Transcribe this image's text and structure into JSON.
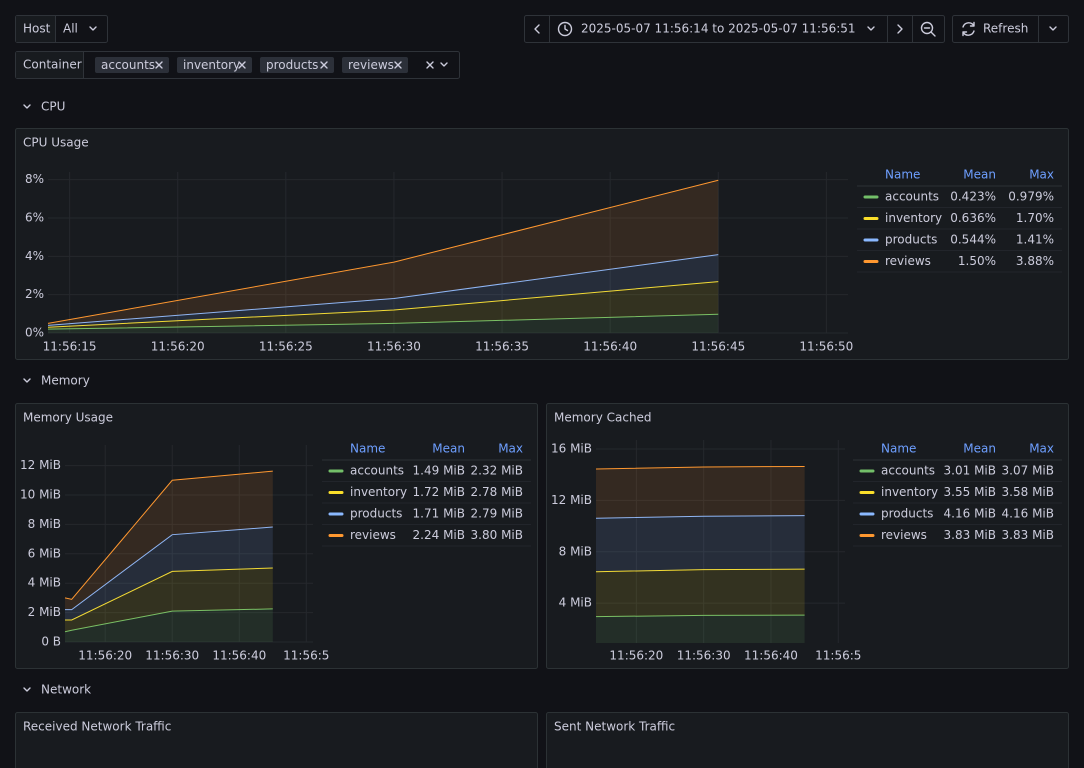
{
  "toolbar": {
    "host_label": "Host",
    "host_value": "All",
    "container_label": "Container",
    "containers": [
      "accounts",
      "inventory",
      "products",
      "reviews"
    ],
    "time_range": "2025-05-07 11:56:14 to 2025-05-07 11:56:51",
    "refresh": "Refresh"
  },
  "rows": [
    {
      "title": "CPU"
    },
    {
      "title": "Memory"
    },
    {
      "title": "Network"
    }
  ],
  "panels": [
    {
      "title": "CPU Usage",
      "type": "line",
      "stacked": true,
      "x": [
        14,
        30,
        45
      ],
      "xlim": [
        14,
        51
      ],
      "xticks": [
        {
          "value": 15,
          "label": "11:56:15"
        },
        {
          "value": 20,
          "label": "11:56:20"
        },
        {
          "value": 25,
          "label": "11:56:25"
        },
        {
          "value": 30,
          "label": "11:56:30"
        },
        {
          "value": 35,
          "label": "11:56:35"
        },
        {
          "value": 40,
          "label": "11:56:40"
        },
        {
          "value": 45,
          "label": "11:56:45"
        },
        {
          "value": 50,
          "label": "11:56:50"
        }
      ],
      "ylim": [
        0,
        8.4
      ],
      "yticks": [
        {
          "value": 0,
          "label": "0%"
        },
        {
          "value": 2,
          "label": "2%"
        },
        {
          "value": 4,
          "label": "4%"
        },
        {
          "value": 6,
          "label": "6%"
        },
        {
          "value": 8,
          "label": "8%"
        }
      ],
      "legend_columns": [
        "Name",
        "Mean",
        "Max"
      ],
      "series": [
        {
          "name": "accounts",
          "color": "#73bf69",
          "values": [
            0.2,
            0.5,
            0.979
          ],
          "mean": "0.423%",
          "max": "0.979%"
        },
        {
          "name": "inventory",
          "color": "#fade2a",
          "values": [
            0.1,
            0.7,
            1.7
          ],
          "mean": "0.636%",
          "max": "1.70%"
        },
        {
          "name": "products",
          "color": "#8ab8ff",
          "values": [
            0.1,
            0.6,
            1.41
          ],
          "mean": "0.544%",
          "max": "1.41%"
        },
        {
          "name": "reviews",
          "color": "#ff9830",
          "values": [
            0.1,
            1.9,
            3.88
          ],
          "mean": "1.50%",
          "max": "3.88%"
        }
      ]
    },
    {
      "title": "Memory Usage",
      "type": "line",
      "stacked": true,
      "x": [
        14,
        15,
        30,
        45
      ],
      "xlim": [
        14,
        51
      ],
      "xticks": [
        {
          "value": 20,
          "label": "11:56:20"
        },
        {
          "value": 30,
          "label": "11:56:30"
        },
        {
          "value": 40,
          "label": "11:56:40"
        },
        {
          "value": 50,
          "label": "11:56:5"
        }
      ],
      "ylim": [
        0,
        13.4
      ],
      "yticks": [
        {
          "value": 0,
          "label": "0 B"
        },
        {
          "value": 2,
          "label": "2 MiB"
        },
        {
          "value": 4,
          "label": "4 MiB"
        },
        {
          "value": 6,
          "label": "6 MiB"
        },
        {
          "value": 8,
          "label": "8 MiB"
        },
        {
          "value": 10,
          "label": "10 MiB"
        },
        {
          "value": 12,
          "label": "12 MiB"
        }
      ],
      "legend_columns": [
        "Name",
        "Mean",
        "Max"
      ],
      "series": [
        {
          "name": "accounts",
          "color": "#73bf69",
          "values": [
            0.7,
            0.8,
            2.1,
            2.25
          ],
          "mean": "1.49 MiB",
          "max": "2.32 MiB"
        },
        {
          "name": "inventory",
          "color": "#fade2a",
          "values": [
            0.8,
            0.7,
            2.7,
            2.78
          ],
          "mean": "1.72 MiB",
          "max": "2.78 MiB"
        },
        {
          "name": "products",
          "color": "#8ab8ff",
          "values": [
            0.7,
            0.7,
            2.5,
            2.79
          ],
          "mean": "1.71 MiB",
          "max": "2.79 MiB"
        },
        {
          "name": "reviews",
          "color": "#ff9830",
          "values": [
            0.8,
            0.7,
            3.7,
            3.8
          ],
          "mean": "2.24 MiB",
          "max": "3.80 MiB"
        }
      ]
    },
    {
      "title": "Memory Cached",
      "type": "line",
      "stacked": true,
      "x": [
        14,
        30,
        45
      ],
      "xlim": [
        14,
        51
      ],
      "xticks": [
        {
          "value": 20,
          "label": "11:56:20"
        },
        {
          "value": 30,
          "label": "11:56:30"
        },
        {
          "value": 40,
          "label": "11:56:40"
        },
        {
          "value": 50,
          "label": "11:56:5"
        }
      ],
      "ylim": [
        0.9,
        16.7
      ],
      "yticks": [
        {
          "value": 4,
          "label": "4 MiB"
        },
        {
          "value": 8,
          "label": "8 MiB"
        },
        {
          "value": 12,
          "label": "12 MiB"
        },
        {
          "value": 16,
          "label": "16 MiB"
        }
      ],
      "legend_columns": [
        "Name",
        "Mean",
        "Max"
      ],
      "series": [
        {
          "name": "accounts",
          "color": "#73bf69",
          "values": [
            2.95,
            3.05,
            3.07
          ],
          "mean": "3.01 MiB",
          "max": "3.07 MiB"
        },
        {
          "name": "inventory",
          "color": "#fade2a",
          "values": [
            3.5,
            3.56,
            3.58
          ],
          "mean": "3.55 MiB",
          "max": "3.58 MiB"
        },
        {
          "name": "products",
          "color": "#8ab8ff",
          "values": [
            4.16,
            4.16,
            4.16
          ],
          "mean": "4.16 MiB",
          "max": "4.16 MiB"
        },
        {
          "name": "reviews",
          "color": "#ff9830",
          "values": [
            3.83,
            3.83,
            3.83
          ],
          "mean": "3.83 MiB",
          "max": "3.83 MiB"
        }
      ]
    },
    {
      "title": "Received Network Traffic"
    },
    {
      "title": "Sent Network Traffic"
    }
  ]
}
